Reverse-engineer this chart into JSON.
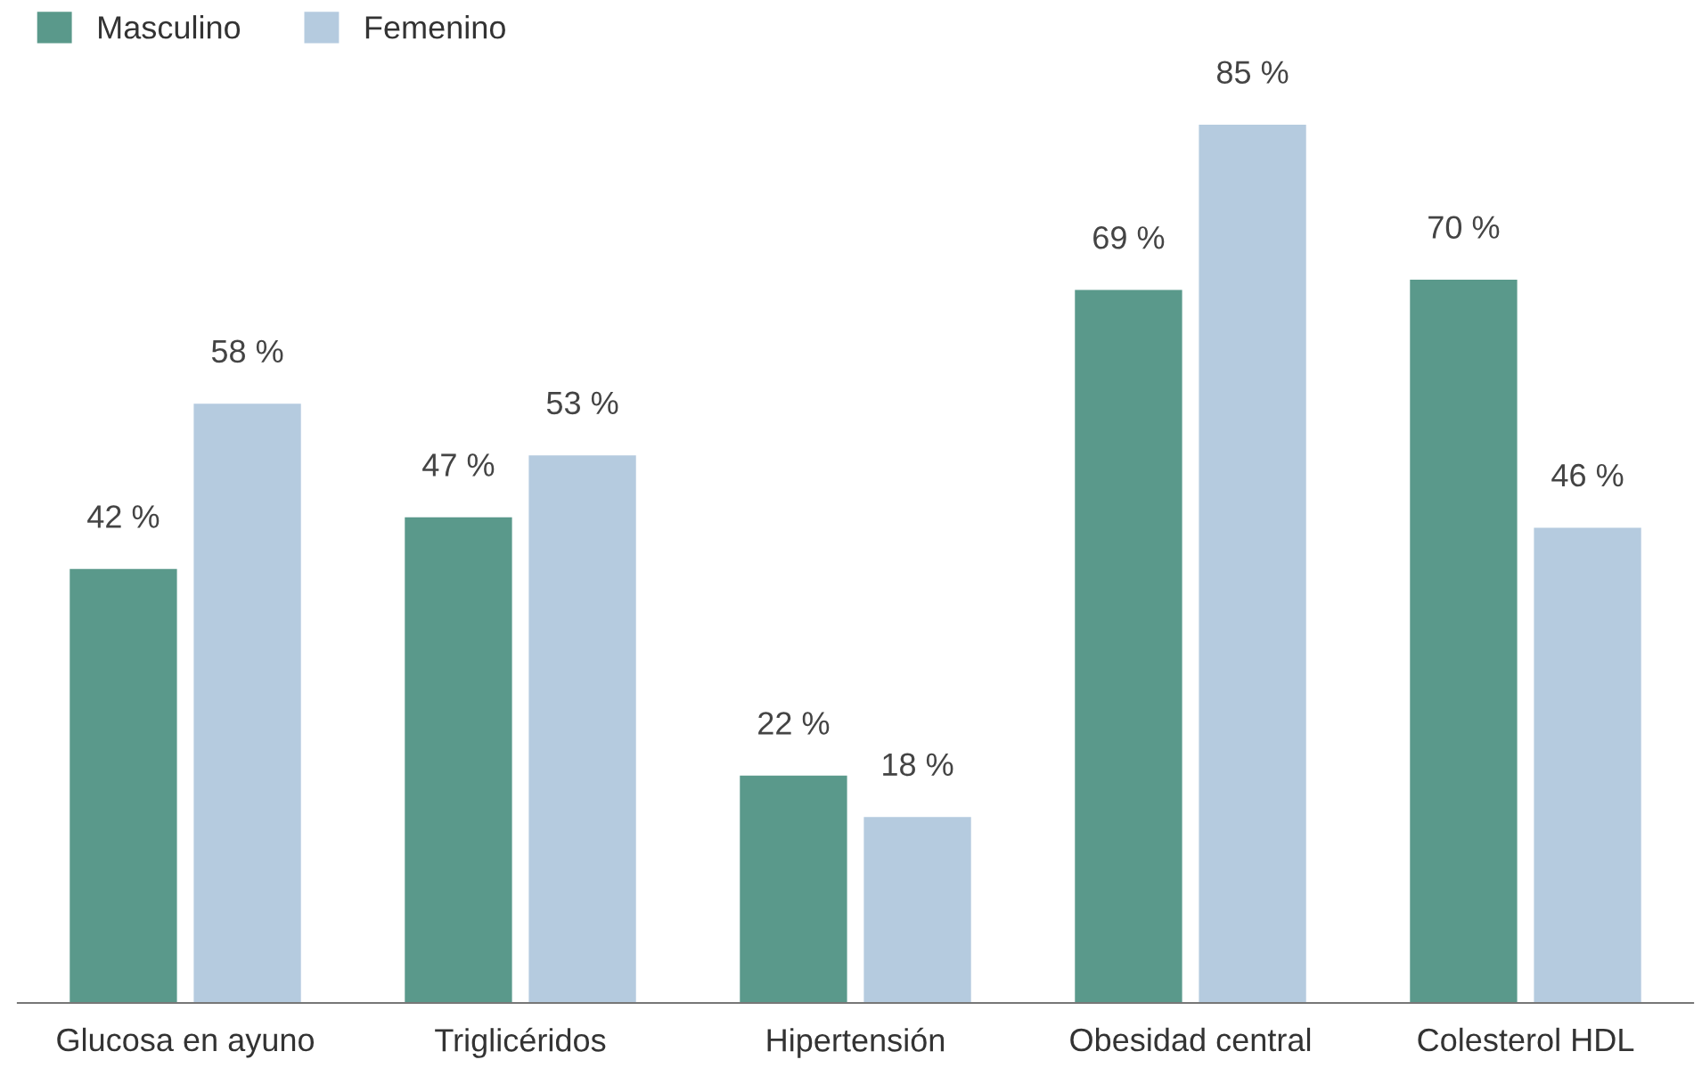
{
  "chart_data": {
    "type": "bar",
    "categories": [
      "Glucosa en ayuno",
      "Triglicéridos",
      "Hipertensión",
      "Obesidad central",
      "Colesterol HDL"
    ],
    "series": [
      {
        "name": "Masculino",
        "color": "#5a998b",
        "values": [
          42,
          47,
          22,
          69,
          70
        ],
        "value_labels": [
          "42 %",
          "47 %",
          "22 %",
          "69 %",
          "70 %"
        ]
      },
      {
        "name": "Femenino",
        "color": "#b5cbdf",
        "values": [
          58,
          53,
          18,
          85,
          46
        ],
        "value_labels": [
          "58 %",
          "53 %",
          "18 %",
          "85 %",
          "46 %"
        ]
      }
    ],
    "legend": "top left",
    "grid": false,
    "tick_labels": "x"
  }
}
